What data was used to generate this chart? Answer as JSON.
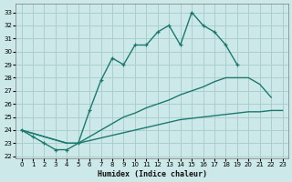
{
  "xlabel": "Humidex (Indice chaleur)",
  "bg_color": "#cde8e8",
  "grid_color": "#aacece",
  "line_color": "#1a7a6e",
  "xlim": [
    -0.5,
    23.5
  ],
  "ylim": [
    21.85,
    33.65
  ],
  "xticks": [
    0,
    1,
    2,
    3,
    4,
    5,
    6,
    7,
    8,
    9,
    10,
    11,
    12,
    13,
    14,
    15,
    16,
    17,
    18,
    19,
    20,
    21,
    22,
    23
  ],
  "yticks": [
    22,
    23,
    24,
    25,
    26,
    27,
    28,
    29,
    30,
    31,
    32,
    33
  ],
  "line1_x": [
    0,
    1,
    2,
    3,
    4,
    5,
    6,
    7,
    8,
    9,
    10,
    11,
    12,
    13,
    14,
    15,
    16,
    17,
    18,
    19
  ],
  "line1_y": [
    24.0,
    23.5,
    23.0,
    22.5,
    22.5,
    23.0,
    25.5,
    27.8,
    29.5,
    29.0,
    30.5,
    30.5,
    31.5,
    32.0,
    30.5,
    33.0,
    32.0,
    31.5,
    30.5,
    29.0
  ],
  "line2_x": [
    0,
    4,
    5,
    6,
    7,
    8,
    9,
    10,
    11,
    12,
    13,
    14,
    15,
    16,
    17,
    18,
    19,
    20,
    21,
    22
  ],
  "line2_y": [
    24.0,
    23.0,
    23.0,
    23.5,
    24.0,
    24.5,
    25.0,
    25.3,
    25.7,
    26.0,
    26.3,
    26.7,
    27.0,
    27.3,
    27.7,
    28.0,
    28.0,
    28.0,
    27.5,
    26.5
  ],
  "line3_x": [
    0,
    4,
    5,
    6,
    7,
    8,
    9,
    10,
    11,
    12,
    13,
    14,
    15,
    16,
    17,
    18,
    19,
    20,
    21,
    22,
    23
  ],
  "line3_y": [
    24.0,
    23.0,
    23.0,
    23.2,
    23.4,
    23.6,
    23.8,
    24.0,
    24.2,
    24.4,
    24.6,
    24.8,
    24.9,
    25.0,
    25.1,
    25.2,
    25.3,
    25.4,
    25.4,
    25.5,
    25.5
  ]
}
